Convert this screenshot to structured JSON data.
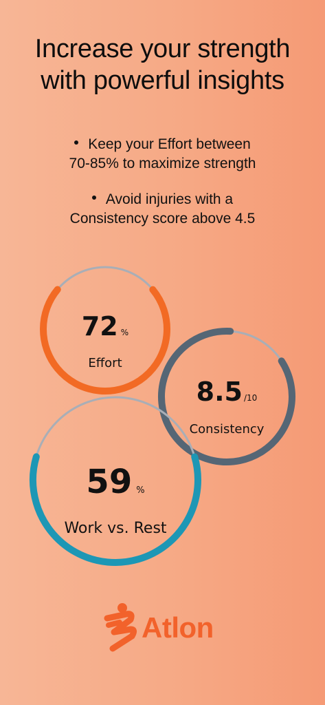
{
  "headline": {
    "line1": "Increase your strength",
    "line2": "with powerful insights"
  },
  "bullets": [
    {
      "line1": "Keep your Effort between",
      "line2": "70-85% to maximize strength"
    },
    {
      "line1": "Avoid injuries with a",
      "line2": "Consistency score above 4.5"
    }
  ],
  "gauges": {
    "effort": {
      "value": "72",
      "unit": "%",
      "label": "Effort",
      "fill_fraction": 0.72,
      "color": "#f26a24",
      "track_color": "#a9aeb6"
    },
    "consistency": {
      "value": "8.5",
      "unit": "/10",
      "label": "Consistency",
      "fill_fraction": 0.85,
      "color": "#556675",
      "track_color": "#a9aeb6"
    },
    "work_rest": {
      "value": "59",
      "unit": "%",
      "label": "Work vs. Rest",
      "fill_fraction": 0.59,
      "color": "#1d97b5",
      "track_color": "#a9aeb6"
    }
  },
  "brand": {
    "name": "Atlon",
    "color": "#f2622b",
    "icon": "atlon-logo-icon"
  }
}
